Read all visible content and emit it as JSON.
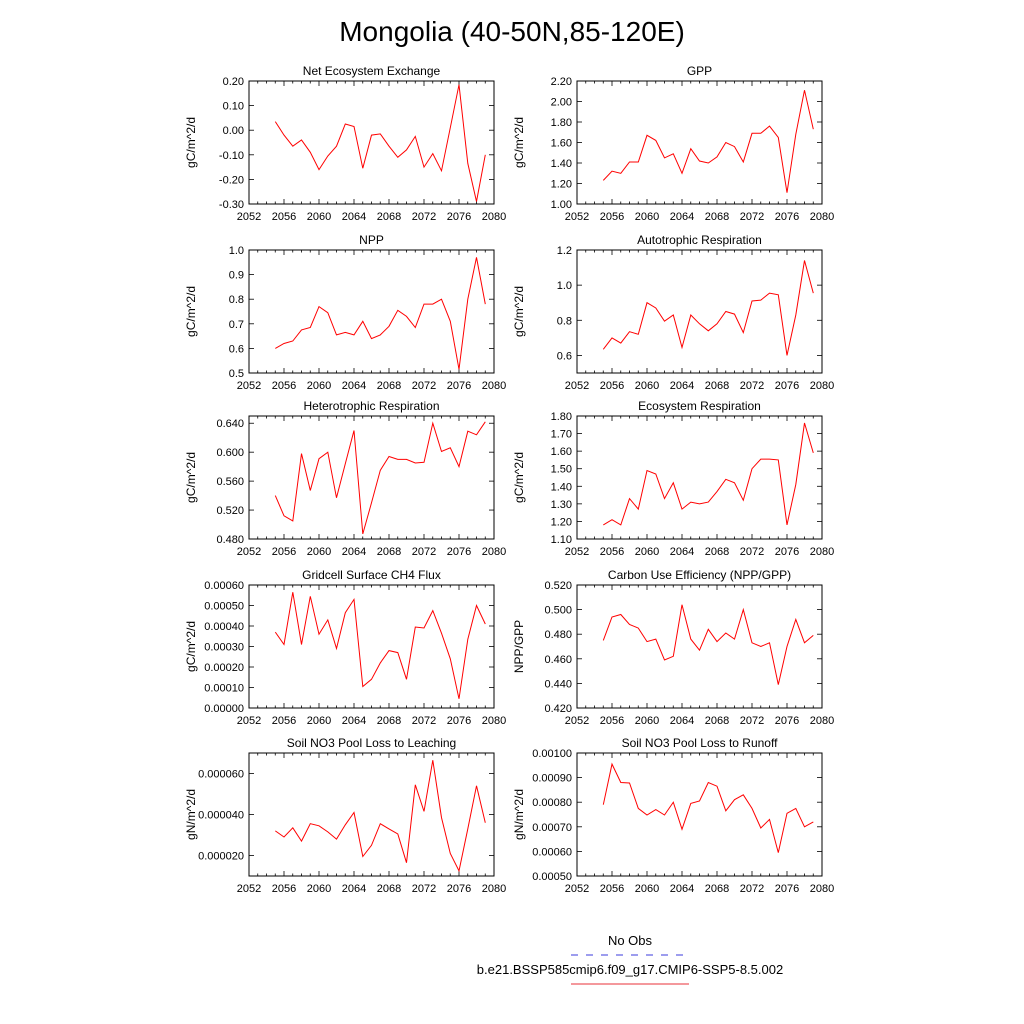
{
  "figure": {
    "title": "Mongolia (40-50N,85-120E)",
    "legend": {
      "obs_label": "No Obs",
      "obs_color": "#3b3bdc",
      "model_label": "b.e21.BSSP585cmip6.f09_g17.CMIP6-SSP5-8.5.002",
      "model_color": "#e8303a"
    },
    "line_color": "#ff0000"
  },
  "chart_data": [
    {
      "type": "line",
      "title": "Net Ecosystem Exchange",
      "ylabel": "gC/m^2/d",
      "xlim": [
        2052,
        2080
      ],
      "xticks": [
        "2052",
        "2056",
        "2060",
        "2064",
        "2068",
        "2072",
        "2076",
        "2080"
      ],
      "ylim": [
        -0.3,
        0.2
      ],
      "yticks": [
        "-0.30",
        "-0.20",
        "-0.10",
        "0.00",
        "0.10",
        "0.20"
      ],
      "x": [
        2055,
        2056,
        2057,
        2058,
        2059,
        2060,
        2061,
        2062,
        2063,
        2064,
        2065,
        2066,
        2067,
        2068,
        2069,
        2070,
        2071,
        2072,
        2073,
        2074,
        2075,
        2076,
        2077,
        2078,
        2079
      ],
      "series": [
        {
          "values": [
            0.035,
            -0.02,
            -0.065,
            -0.04,
            -0.09,
            -0.16,
            -0.105,
            -0.065,
            0.025,
            0.015,
            -0.155,
            -0.02,
            -0.015,
            -0.065,
            -0.11,
            -0.08,
            -0.025,
            -0.15,
            -0.095,
            -0.165,
            0.01,
            0.185,
            -0.135,
            -0.29,
            -0.1
          ]
        }
      ]
    },
    {
      "type": "line",
      "title": "GPP",
      "ylabel": "gC/m^2/d",
      "xlim": [
        2052,
        2080
      ],
      "xticks": [
        "2052",
        "2056",
        "2060",
        "2064",
        "2068",
        "2072",
        "2076",
        "2080"
      ],
      "ylim": [
        1.0,
        2.2
      ],
      "yticks": [
        "1.00",
        "1.20",
        "1.40",
        "1.60",
        "1.80",
        "2.00",
        "2.20"
      ],
      "x": [
        2055,
        2056,
        2057,
        2058,
        2059,
        2060,
        2061,
        2062,
        2063,
        2064,
        2065,
        2066,
        2067,
        2068,
        2069,
        2070,
        2071,
        2072,
        2073,
        2074,
        2075,
        2076,
        2077,
        2078,
        2079
      ],
      "series": [
        {
          "values": [
            1.23,
            1.32,
            1.3,
            1.41,
            1.41,
            1.67,
            1.62,
            1.45,
            1.49,
            1.3,
            1.54,
            1.42,
            1.4,
            1.46,
            1.6,
            1.56,
            1.41,
            1.69,
            1.69,
            1.76,
            1.65,
            1.11,
            1.68,
            2.11,
            1.73
          ]
        }
      ]
    },
    {
      "type": "line",
      "title": "NPP",
      "ylabel": "gC/m^2/d",
      "xlim": [
        2052,
        2080
      ],
      "xticks": [
        "2052",
        "2056",
        "2060",
        "2064",
        "2068",
        "2072",
        "2076",
        "2080"
      ],
      "ylim": [
        0.5,
        1.0
      ],
      "yticks": [
        "0.5",
        "0.6",
        "0.7",
        "0.8",
        "0.9",
        "1.0"
      ],
      "x": [
        2055,
        2056,
        2057,
        2058,
        2059,
        2060,
        2061,
        2062,
        2063,
        2064,
        2065,
        2066,
        2067,
        2068,
        2069,
        2070,
        2071,
        2072,
        2073,
        2074,
        2075,
        2076,
        2077,
        2078,
        2079
      ],
      "series": [
        {
          "values": [
            0.6,
            0.62,
            0.63,
            0.675,
            0.685,
            0.77,
            0.745,
            0.655,
            0.665,
            0.655,
            0.71,
            0.64,
            0.655,
            0.69,
            0.755,
            0.73,
            0.685,
            0.78,
            0.78,
            0.8,
            0.71,
            0.515,
            0.8,
            0.97,
            0.78
          ]
        }
      ]
    },
    {
      "type": "line",
      "title": "Autotrophic Respiration",
      "ylabel": "gC/m^2/d",
      "xlim": [
        2052,
        2080
      ],
      "xticks": [
        "2052",
        "2056",
        "2060",
        "2064",
        "2068",
        "2072",
        "2076",
        "2080"
      ],
      "ylim": [
        0.5,
        1.2
      ],
      "yticks": [
        "0.6",
        "0.8",
        "1.0",
        "1.2"
      ],
      "x": [
        2055,
        2056,
        2057,
        2058,
        2059,
        2060,
        2061,
        2062,
        2063,
        2064,
        2065,
        2066,
        2067,
        2068,
        2069,
        2070,
        2071,
        2072,
        2073,
        2074,
        2075,
        2076,
        2077,
        2078,
        2079
      ],
      "series": [
        {
          "values": [
            0.635,
            0.7,
            0.67,
            0.735,
            0.72,
            0.9,
            0.87,
            0.795,
            0.83,
            0.645,
            0.83,
            0.78,
            0.74,
            0.78,
            0.85,
            0.835,
            0.73,
            0.91,
            0.915,
            0.955,
            0.945,
            0.6,
            0.83,
            1.14,
            0.955
          ]
        }
      ]
    },
    {
      "type": "line",
      "title": "Heterotrophic Respiration",
      "ylabel": "gC/m^2/d",
      "xlim": [
        2052,
        2080
      ],
      "xticks": [
        "2052",
        "2056",
        "2060",
        "2064",
        "2068",
        "2072",
        "2076",
        "2080"
      ],
      "ylim": [
        0.48,
        0.65
      ],
      "yticks": [
        "0.480",
        "0.520",
        "0.560",
        "0.600",
        "0.640"
      ],
      "x": [
        2055,
        2056,
        2057,
        2058,
        2059,
        2060,
        2061,
        2062,
        2063,
        2064,
        2065,
        2066,
        2067,
        2068,
        2069,
        2070,
        2071,
        2072,
        2073,
        2074,
        2075,
        2076,
        2077,
        2078,
        2079
      ],
      "series": [
        {
          "values": [
            0.54,
            0.512,
            0.505,
            0.598,
            0.547,
            0.591,
            0.6,
            0.537,
            0.584,
            0.63,
            0.487,
            0.53,
            0.575,
            0.594,
            0.59,
            0.59,
            0.585,
            0.586,
            0.64,
            0.601,
            0.606,
            0.58,
            0.629,
            0.624,
            0.642
          ]
        }
      ]
    },
    {
      "type": "line",
      "title": "Ecosystem Respiration",
      "ylabel": "gC/m^2/d",
      "xlim": [
        2052,
        2080
      ],
      "xticks": [
        "2052",
        "2056",
        "2060",
        "2064",
        "2068",
        "2072",
        "2076",
        "2080"
      ],
      "ylim": [
        1.1,
        1.8
      ],
      "yticks": [
        "1.10",
        "1.20",
        "1.30",
        "1.40",
        "1.50",
        "1.60",
        "1.70",
        "1.80"
      ],
      "x": [
        2055,
        2056,
        2057,
        2058,
        2059,
        2060,
        2061,
        2062,
        2063,
        2064,
        2065,
        2066,
        2067,
        2068,
        2069,
        2070,
        2071,
        2072,
        2073,
        2074,
        2075,
        2076,
        2077,
        2078,
        2079
      ],
      "series": [
        {
          "values": [
            1.18,
            1.21,
            1.18,
            1.33,
            1.27,
            1.49,
            1.47,
            1.33,
            1.42,
            1.27,
            1.31,
            1.3,
            1.31,
            1.37,
            1.44,
            1.42,
            1.32,
            1.5,
            1.555,
            1.555,
            1.55,
            1.18,
            1.41,
            1.76,
            1.59
          ]
        }
      ]
    },
    {
      "type": "line",
      "title": "Gridcell Surface CH4 Flux",
      "ylabel": "gC/m^2/d",
      "xlim": [
        2052,
        2080
      ],
      "xticks": [
        "2052",
        "2056",
        "2060",
        "2064",
        "2068",
        "2072",
        "2076",
        "2080"
      ],
      "ylim": [
        0.0,
        0.0006
      ],
      "yticks": [
        "0.00000",
        "0.00010",
        "0.00020",
        "0.00030",
        "0.00040",
        "0.00050",
        "0.00060"
      ],
      "x": [
        2055,
        2056,
        2057,
        2058,
        2059,
        2060,
        2061,
        2062,
        2063,
        2064,
        2065,
        2066,
        2067,
        2068,
        2069,
        2070,
        2071,
        2072,
        2073,
        2074,
        2075,
        2076,
        2077,
        2078,
        2079
      ],
      "series": [
        {
          "values": [
            0.00037,
            0.00031,
            0.000565,
            0.00031,
            0.000545,
            0.00036,
            0.00043,
            0.00029,
            0.000465,
            0.00053,
            0.000105,
            0.00014,
            0.00022,
            0.00028,
            0.00027,
            0.00014,
            0.000395,
            0.00039,
            0.000475,
            0.000365,
            0.00024,
            4.5e-05,
            0.000335,
            0.0005,
            0.00041
          ]
        }
      ]
    },
    {
      "type": "line",
      "title": "Carbon Use Efficiency (NPP/GPP)",
      "ylabel": "NPP/GPP",
      "xlim": [
        2052,
        2080
      ],
      "xticks": [
        "2052",
        "2056",
        "2060",
        "2064",
        "2068",
        "2072",
        "2076",
        "2080"
      ],
      "ylim": [
        0.42,
        0.52
      ],
      "yticks": [
        "0.420",
        "0.440",
        "0.460",
        "0.480",
        "0.500",
        "0.520"
      ],
      "x": [
        2055,
        2056,
        2057,
        2058,
        2059,
        2060,
        2061,
        2062,
        2063,
        2064,
        2065,
        2066,
        2067,
        2068,
        2069,
        2070,
        2071,
        2072,
        2073,
        2074,
        2075,
        2076,
        2077,
        2078,
        2079
      ],
      "series": [
        {
          "values": [
            0.475,
            0.494,
            0.496,
            0.488,
            0.485,
            0.474,
            0.476,
            0.459,
            0.462,
            0.504,
            0.476,
            0.467,
            0.484,
            0.474,
            0.481,
            0.476,
            0.5,
            0.473,
            0.47,
            0.473,
            0.439,
            0.47,
            0.492,
            0.473,
            0.479
          ]
        }
      ]
    },
    {
      "type": "line",
      "title": "Soil NO3 Pool Loss to Leaching",
      "ylabel": "gN/m^2/d",
      "xlim": [
        2052,
        2080
      ],
      "xticks": [
        "2052",
        "2056",
        "2060",
        "2064",
        "2068",
        "2072",
        "2076",
        "2080"
      ],
      "ylim": [
        1e-05,
        7e-05
      ],
      "yticks": [
        "0.000020",
        "0.000040",
        "0.000060"
      ],
      "x": [
        2055,
        2056,
        2057,
        2058,
        2059,
        2060,
        2061,
        2062,
        2063,
        2064,
        2065,
        2066,
        2067,
        2068,
        2069,
        2070,
        2071,
        2072,
        2073,
        2074,
        2075,
        2076,
        2077,
        2078,
        2079
      ],
      "series": [
        {
          "values": [
            3.2e-05,
            2.9e-05,
            3.35e-05,
            2.7e-05,
            3.55e-05,
            3.45e-05,
            3.15e-05,
            2.8e-05,
            3.5e-05,
            4.1e-05,
            1.95e-05,
            2.5e-05,
            3.55e-05,
            3.3e-05,
            3.05e-05,
            1.65e-05,
            5.45e-05,
            4.15e-05,
            6.65e-05,
            3.85e-05,
            2.1e-05,
            1.25e-05,
            3.3e-05,
            5.4e-05,
            3.6e-05
          ]
        }
      ]
    },
    {
      "type": "line",
      "title": "Soil NO3 Pool Loss to Runoff",
      "ylabel": "gN/m^2/d",
      "xlim": [
        2052,
        2080
      ],
      "xticks": [
        "2052",
        "2056",
        "2060",
        "2064",
        "2068",
        "2072",
        "2076",
        "2080"
      ],
      "ylim": [
        0.0005,
        0.001
      ],
      "yticks": [
        "0.00050",
        "0.00060",
        "0.00070",
        "0.00080",
        "0.00090",
        "0.00100"
      ],
      "x": [
        2055,
        2056,
        2057,
        2058,
        2059,
        2060,
        2061,
        2062,
        2063,
        2064,
        2065,
        2066,
        2067,
        2068,
        2069,
        2070,
        2071,
        2072,
        2073,
        2074,
        2075,
        2076,
        2077,
        2078,
        2079
      ],
      "series": [
        {
          "values": [
            0.00079,
            0.000955,
            0.00088,
            0.000878,
            0.000775,
            0.000748,
            0.00077,
            0.000748,
            0.0008,
            0.00069,
            0.000795,
            0.000805,
            0.00088,
            0.000865,
            0.000765,
            0.00081,
            0.00083,
            0.000775,
            0.000695,
            0.00073,
            0.000595,
            0.000755,
            0.000775,
            0.0007,
            0.00072
          ]
        }
      ]
    }
  ]
}
